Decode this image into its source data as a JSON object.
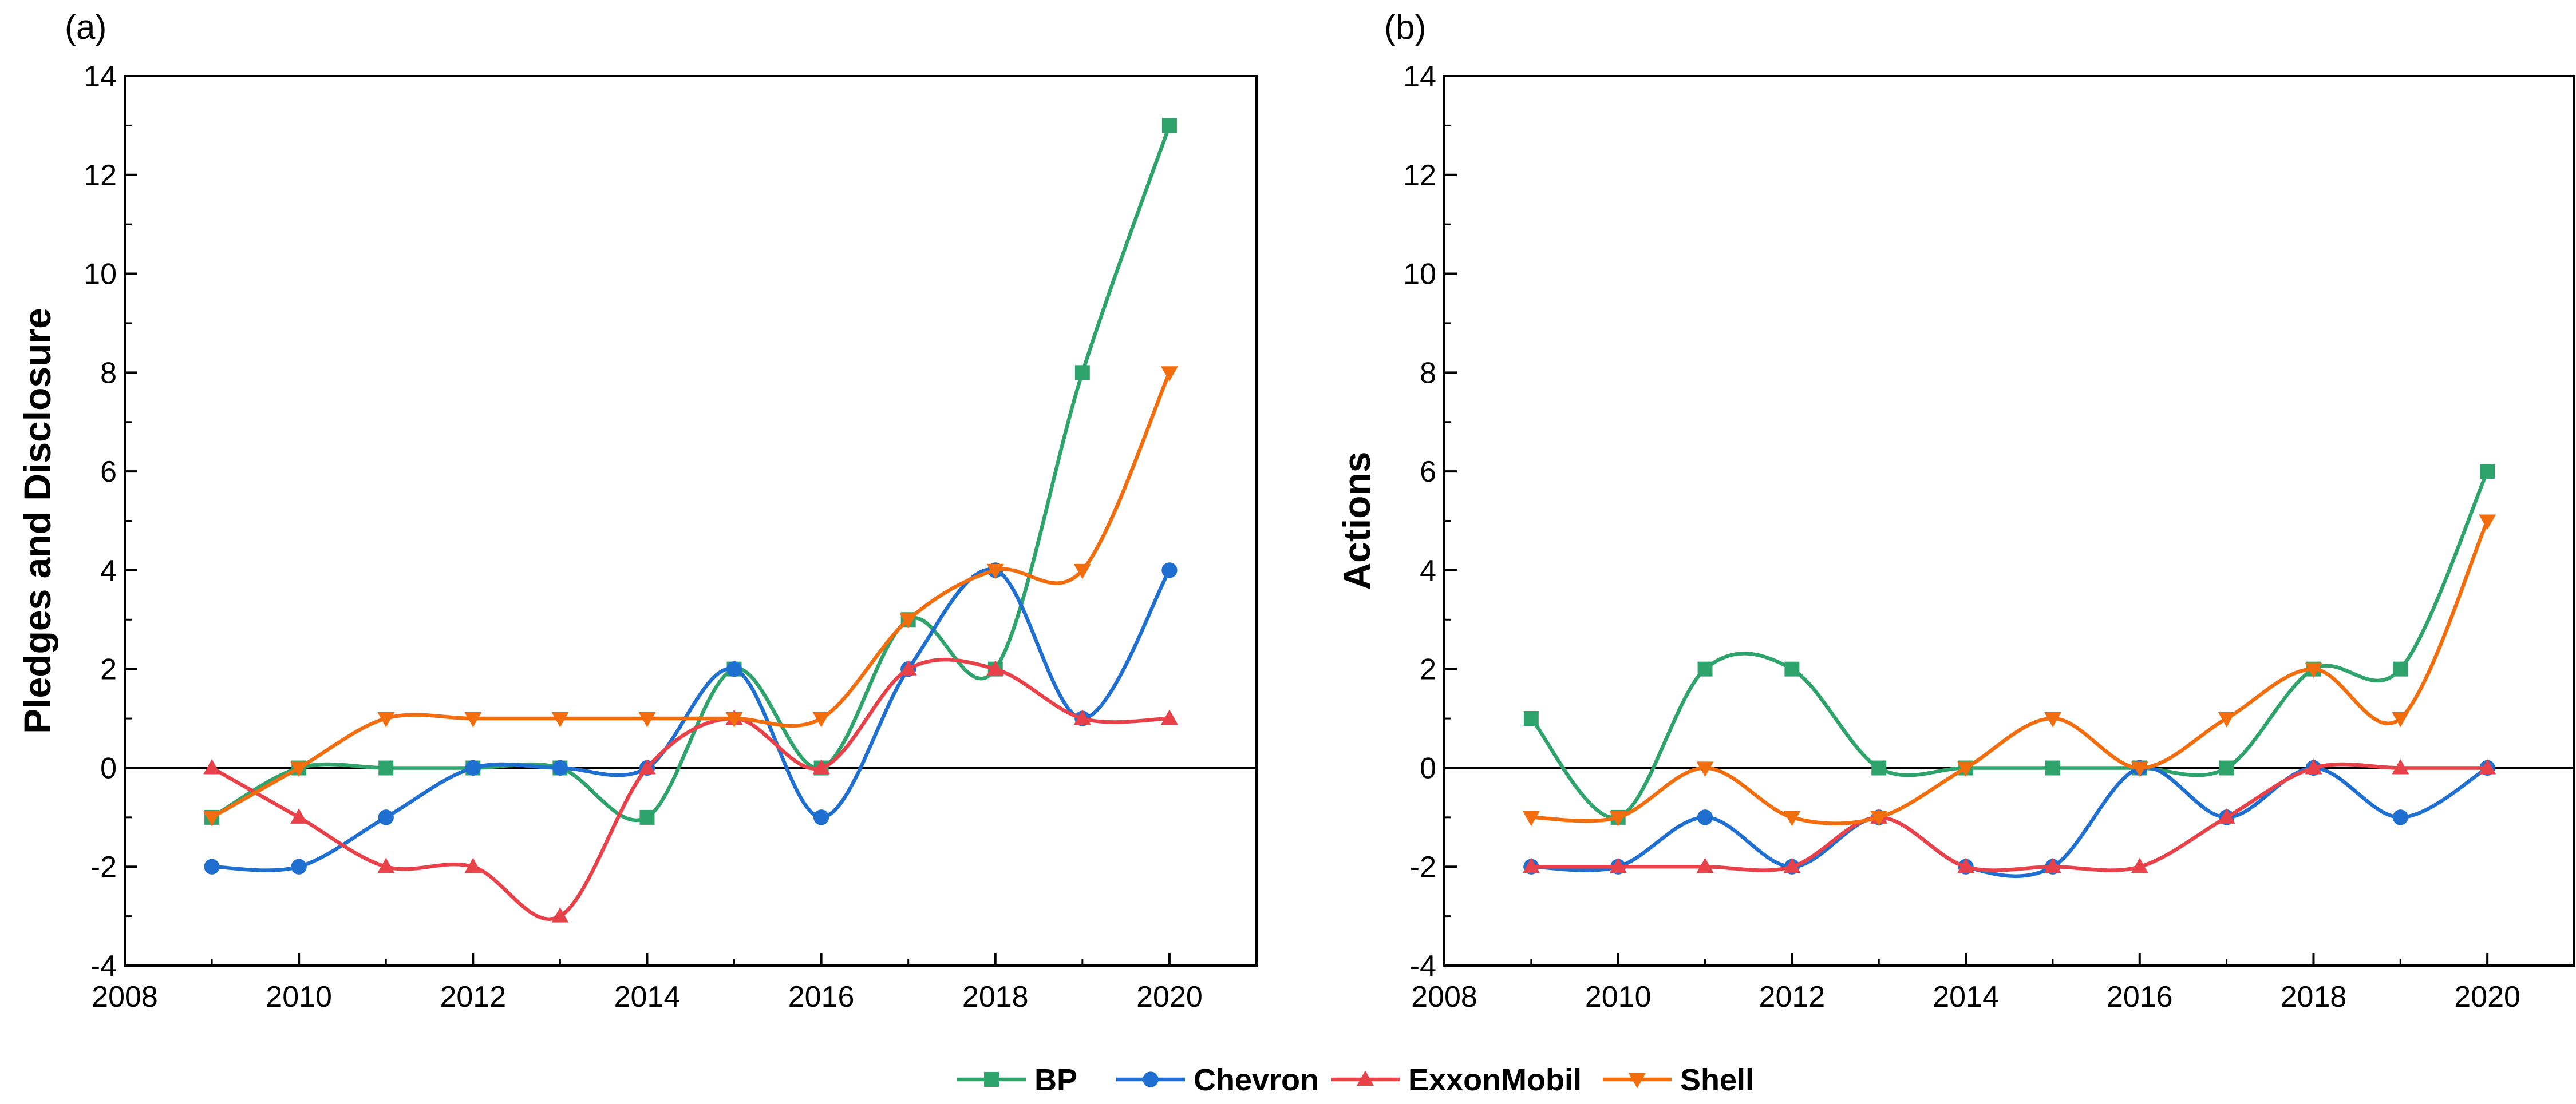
{
  "chart_data": [
    {
      "panel_label": "(a)",
      "type": "line",
      "ylabel": "Pledges and Disclosure",
      "xlabel": "",
      "xlim": [
        2008,
        2021
      ],
      "ylim": [
        -4,
        14
      ],
      "xticks": [
        "2008",
        "2010",
        "2012",
        "2014",
        "2016",
        "2018",
        "2020"
      ],
      "yticks": [
        "-4",
        "-2",
        "0",
        "2",
        "4",
        "6",
        "8",
        "10",
        "12",
        "14"
      ],
      "zero_line": true,
      "x": [
        2009,
        2010,
        2011,
        2012,
        2013,
        2014,
        2015,
        2016,
        2017,
        2018,
        2019,
        2020
      ],
      "series": [
        {
          "name": "BP",
          "values": [
            -1,
            0,
            0,
            0,
            0,
            -1,
            2,
            0,
            3,
            2,
            8,
            13
          ]
        },
        {
          "name": "Chevron",
          "values": [
            -2,
            -2,
            -1,
            0,
            0,
            0,
            2,
            -1,
            2,
            4,
            1,
            4
          ]
        },
        {
          "name": "ExxonMobil",
          "values": [
            0,
            -1,
            -2,
            -2,
            -3,
            0,
            1,
            0,
            2,
            2,
            1,
            1
          ]
        },
        {
          "name": "Shell",
          "values": [
            -1,
            0,
            1,
            1,
            1,
            1,
            1,
            1,
            3,
            4,
            4,
            8
          ]
        }
      ]
    },
    {
      "panel_label": "(b)",
      "type": "line",
      "ylabel": "Actions",
      "xlabel": "",
      "xlim": [
        2008,
        2021
      ],
      "ylim": [
        -4,
        14
      ],
      "xticks": [
        "2008",
        "2010",
        "2012",
        "2014",
        "2016",
        "2018",
        "2020"
      ],
      "yticks": [
        "-4",
        "-2",
        "0",
        "2",
        "4",
        "6",
        "8",
        "10",
        "12",
        "14"
      ],
      "zero_line": true,
      "x": [
        2009,
        2010,
        2011,
        2012,
        2013,
        2014,
        2015,
        2016,
        2017,
        2018,
        2019,
        2020
      ],
      "series": [
        {
          "name": "BP",
          "values": [
            1,
            -1,
            2,
            2,
            0,
            0,
            0,
            0,
            0,
            2,
            2,
            6
          ]
        },
        {
          "name": "Chevron",
          "values": [
            -2,
            -2,
            -1,
            -2,
            -1,
            -2,
            -2,
            0,
            -1,
            0,
            -1,
            0
          ]
        },
        {
          "name": "ExxonMobil",
          "values": [
            -2,
            -2,
            -2,
            -2,
            -1,
            -2,
            -2,
            -2,
            -1,
            0,
            0,
            0
          ]
        },
        {
          "name": "Shell",
          "values": [
            -1,
            -1,
            0,
            -1,
            -1,
            0,
            1,
            0,
            1,
            2,
            1,
            5
          ]
        }
      ]
    }
  ],
  "legend": {
    "placement": "bottom-center",
    "items": [
      {
        "name": "BP",
        "color": "#2ea36b",
        "marker": "square"
      },
      {
        "name": "Chevron",
        "color": "#1f6fd1",
        "marker": "circle"
      },
      {
        "name": "ExxonMobil",
        "color": "#e8414a",
        "marker": "triangle-up"
      },
      {
        "name": "Shell",
        "color": "#f26d0d",
        "marker": "triangle-down"
      }
    ]
  }
}
